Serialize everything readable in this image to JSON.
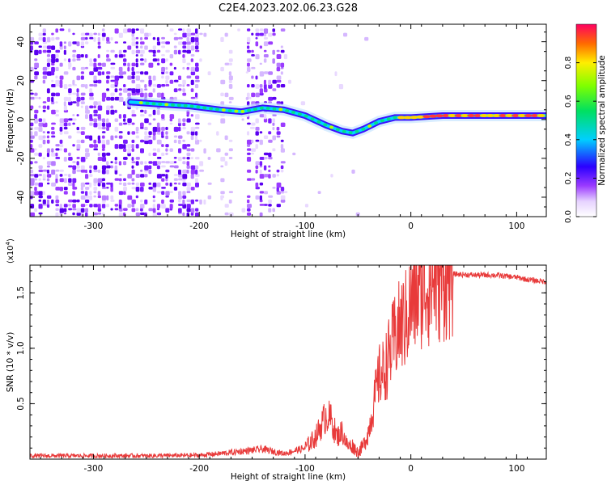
{
  "title": "C2E4.2023.202.06.23.G28",
  "chart_data": [
    {
      "type": "heatmap",
      "xlabel": "Height of straight line (km)",
      "ylabel": "Frequency (Hz)",
      "xlim": [
        -360,
        128
      ],
      "ylim": [
        -50,
        49
      ],
      "xticks": [
        -300,
        -200,
        -100,
        0,
        100
      ],
      "yticks": [
        -40,
        -20,
        0,
        20,
        40
      ],
      "colorbar": {
        "label": "Normalized spectral amplitude",
        "range": [
          0.0,
          1.0
        ],
        "ticks": [
          0.0,
          0.2,
          0.4,
          0.6,
          0.8
        ]
      },
      "ridge": {
        "name": "dominant frequency track",
        "x": [
          -265,
          -240,
          -210,
          -180,
          -160,
          -140,
          -120,
          -100,
          -80,
          -65,
          -55,
          -45,
          -30,
          -15,
          0,
          30,
          60,
          90,
          128
        ],
        "y": [
          9,
          8,
          7,
          5,
          4,
          6,
          5,
          2,
          -3,
          -6,
          -7,
          -5,
          -1,
          1,
          1,
          2,
          2,
          2,
          2
        ]
      },
      "noise_regions_x": [
        [
          -360,
          -200
        ],
        [
          -180,
          -170
        ],
        [
          -155,
          -120
        ]
      ]
    },
    {
      "type": "line",
      "xlabel": "Height of straight line (km)",
      "ylabel": "SNR (10 * v/v)",
      "y_multiplier": "(x10^4)",
      "xlim": [
        -360,
        128
      ],
      "ylim": [
        0,
        17500
      ],
      "xticks": [
        -300,
        -200,
        -100,
        0,
        100
      ],
      "yticks": [
        5000,
        10000,
        15000
      ],
      "ytick_labels": [
        "0.5",
        "1.0",
        "1.5"
      ],
      "series": [
        {
          "name": "SNR",
          "color": "#e83a3a",
          "x": [
            -360,
            -300,
            -250,
            -200,
            -180,
            -160,
            -140,
            -120,
            -100,
            -90,
            -85,
            -80,
            -75,
            -70,
            -65,
            -60,
            -55,
            -50,
            -45,
            -40,
            -35,
            -30,
            -25,
            -20,
            -15,
            -10,
            -5,
            0,
            10,
            20,
            30,
            40,
            60,
            80,
            100,
            110,
            128
          ],
          "y": [
            300,
            300,
            300,
            350,
            500,
            700,
            900,
            500,
            1000,
            2000,
            3000,
            4000,
            3500,
            2000,
            2500,
            1200,
            1200,
            600,
            1200,
            2500,
            5000,
            7500,
            8000,
            9500,
            11000,
            12000,
            12500,
            14000,
            15500,
            16000,
            16500,
            16700,
            16600,
            16600,
            16400,
            16200,
            16000
          ]
        }
      ]
    }
  ]
}
